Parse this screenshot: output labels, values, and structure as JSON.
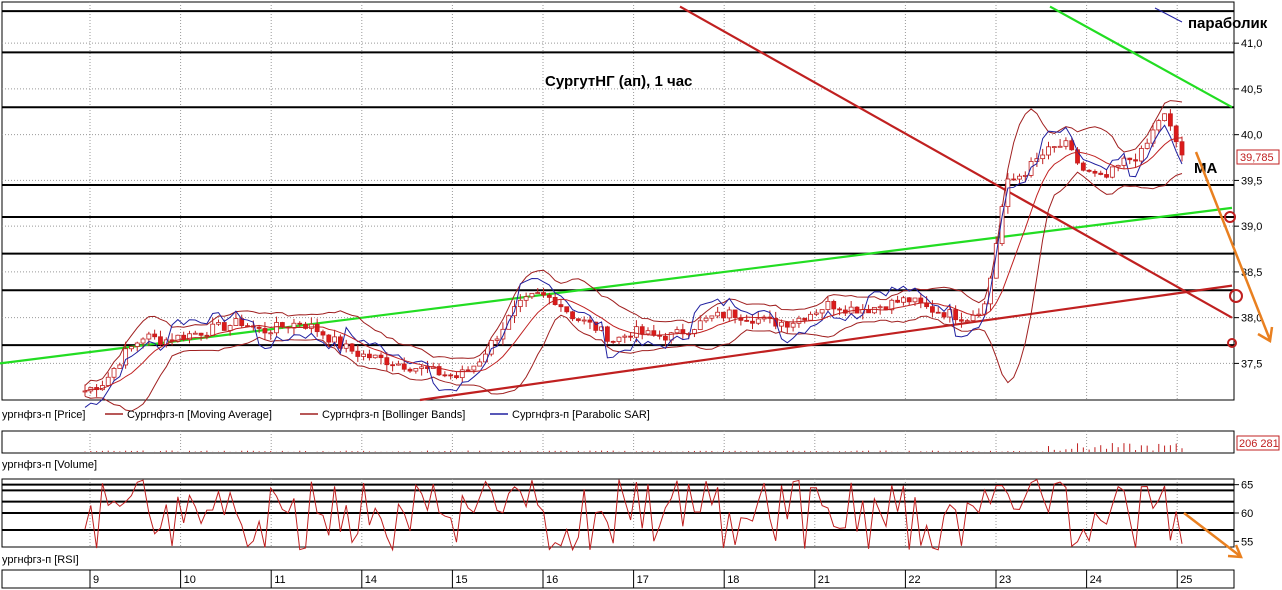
{
  "chart_data": {
    "type": "candlestick",
    "title": "СургутНГ (ап),  1 час",
    "annotations": {
      "parabolic": "параболик",
      "ma": "MA"
    },
    "x_ticks": [
      "9",
      "10",
      "11",
      "14",
      "15",
      "16",
      "17",
      "18",
      "21",
      "22",
      "23",
      "24",
      "25"
    ],
    "price_ticks": [
      "41,0",
      "40,5",
      "40,0",
      "39,5",
      "39,0",
      "38,5",
      "38,0",
      "37,5"
    ],
    "price_range": [
      37.1,
      41.45
    ],
    "last_price": "39,785",
    "legend": [
      {
        "name": "ургнфгз-п [Price]",
        "color": "#a02020"
      },
      {
        "name": "Сургнфгз-п [Moving Average]",
        "color": "#a02020"
      },
      {
        "name": "Сургнфгз-п [Bollinger Bands]",
        "color": "#a02020"
      },
      {
        "name": "Сургнфгз-п [Parabolic SAR]",
        "color": "#2020a0"
      }
    ],
    "horizontal_levels": [
      41.35,
      40.9,
      40.3,
      39.45,
      39.1,
      38.7,
      38.3,
      37.7
    ],
    "trend_lines": [
      {
        "color": "#22dd22",
        "from": [
          0,
          37.5
        ],
        "to": [
          1232,
          39.2
        ]
      },
      {
        "color": "#22dd22",
        "from": [
          1050,
          41.4
        ],
        "to": [
          1232,
          40.3
        ]
      },
      {
        "color": "#c02020",
        "from": [
          680,
          41.4
        ],
        "to": [
          1232,
          38.0
        ]
      },
      {
        "color": "#c02020",
        "from": [
          420,
          37.1
        ],
        "to": [
          1232,
          38.35
        ]
      }
    ],
    "price_series": [
      37.2,
      37.3,
      37.6,
      37.8,
      37.75,
      37.8,
      37.85,
      37.9,
      37.95,
      37.85,
      37.9,
      37.95,
      37.85,
      37.7,
      37.6,
      37.55,
      37.5,
      37.45,
      37.4,
      37.35,
      37.5,
      37.8,
      38.1,
      38.25,
      38.2,
      38.0,
      37.9,
      37.75,
      37.85,
      37.8,
      37.8,
      37.9,
      38.0,
      38.05,
      38.0,
      37.95,
      37.95,
      38.05,
      38.15,
      38.1,
      38.1,
      38.15,
      38.2,
      38.1,
      38.05,
      38.0,
      38.15,
      39.45,
      39.6,
      39.8,
      39.9,
      39.6,
      39.5,
      39.7,
      39.8,
      40.25,
      39.785
    ],
    "volume": {
      "label": "ургнфгз-п [Volume]",
      "last": "206 281"
    },
    "rsi": {
      "label": "ургнфгз-п [RSI]",
      "ticks": [
        "65",
        "60",
        "55"
      ],
      "levels": [
        65,
        64,
        62,
        60,
        57
      ]
    }
  }
}
